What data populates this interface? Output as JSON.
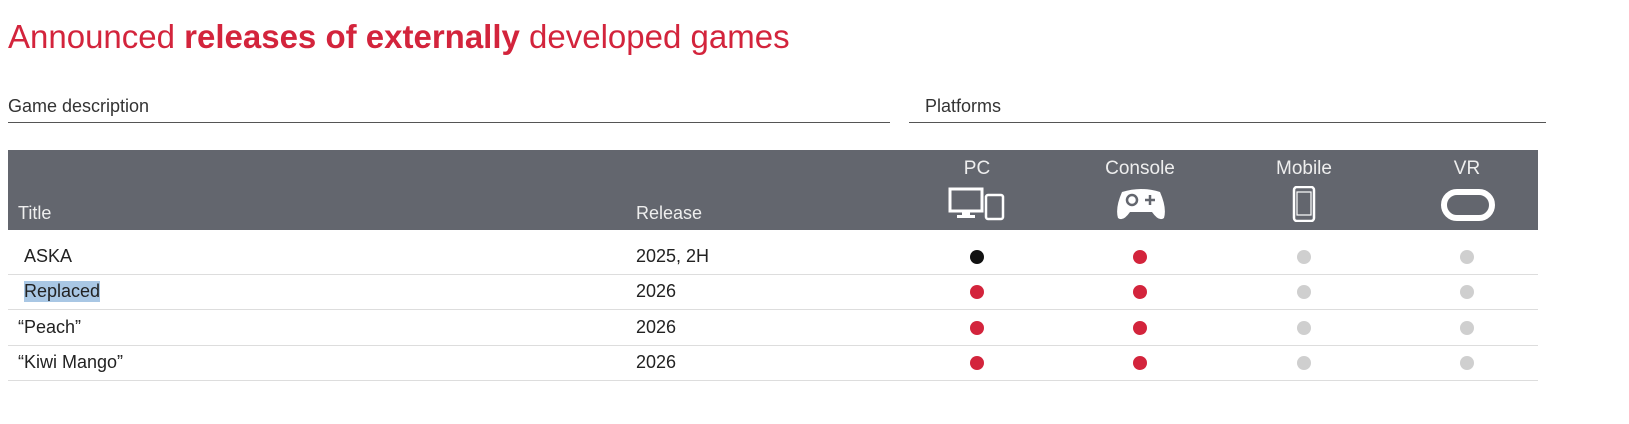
{
  "title": {
    "part1": "Announced ",
    "bold": "releases of externally",
    "part2": " developed games"
  },
  "sections": {
    "left": "Game description",
    "right": "Platforms"
  },
  "table": {
    "headers": {
      "title": "Title",
      "release": "Release"
    },
    "platforms": [
      {
        "label": "PC",
        "icon": "pc-tablet-icon"
      },
      {
        "label": "Console",
        "icon": "gamepad-icon"
      },
      {
        "label": "Mobile",
        "icon": "smartphone-icon"
      },
      {
        "label": "VR",
        "icon": "vr-headset-icon"
      }
    ],
    "rows": [
      {
        "title": "ASKA",
        "release": "2025, 2H",
        "platforms": [
          "black",
          "red",
          "gray",
          "gray"
        ]
      },
      {
        "title": "Replaced",
        "release": "2026",
        "highlighted": true,
        "platforms": [
          "red",
          "red",
          "gray",
          "gray"
        ]
      },
      {
        "title": "“Peach”",
        "release": "2026",
        "platforms": [
          "red",
          "red",
          "gray",
          "gray"
        ]
      },
      {
        "title": "“Kiwi Mango”",
        "release": "2026",
        "platforms": [
          "red",
          "red",
          "gray",
          "gray"
        ]
      }
    ]
  },
  "colors": {
    "accent": "#d3243c",
    "header_bg": "#63666e",
    "red": "#d3243c",
    "black": "#111111",
    "gray": "#cfcfcf"
  }
}
